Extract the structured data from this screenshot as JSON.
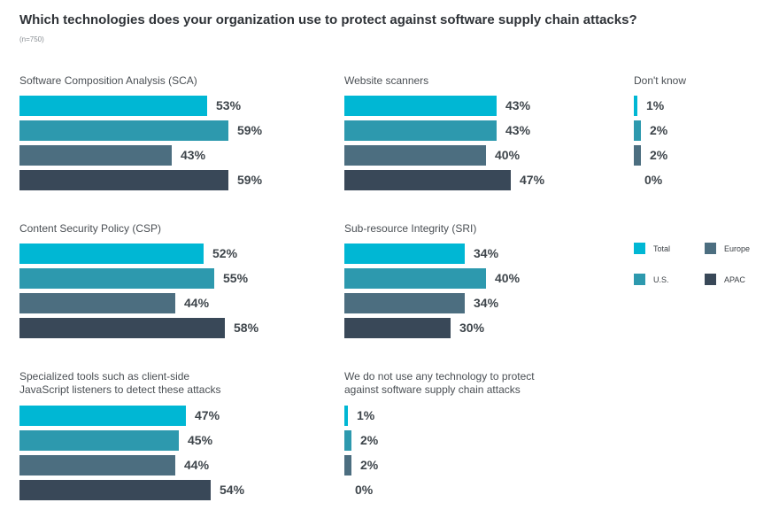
{
  "header": {
    "title": "Which technologies does your organization use to protect against software supply chain attacks?",
    "subtitle": "(n=750)"
  },
  "colors": {
    "Total": "#00b7d4",
    "U.S.": "#2d99ae",
    "Europe": "#4c6e80",
    "APAC": "#394858"
  },
  "chart_data": {
    "type": "bar",
    "orientation": "horizontal",
    "title": "Which technologies does your organization use to protect against software supply chain attacks?",
    "subtitle": "(n=750)",
    "unit": "%",
    "series_names": [
      "Total",
      "U.S.",
      "Europe",
      "APAC"
    ],
    "legend": {
      "position": "right",
      "items": [
        "Total",
        "Europe",
        "U.S.",
        "APAC"
      ]
    },
    "panels": [
      {
        "label_lines": [
          "Software Composition Analysis (SCA)"
        ],
        "values": [
          53,
          59,
          43,
          59
        ],
        "labels": [
          "53%",
          "59%",
          "43%",
          "59%"
        ]
      },
      {
        "label_lines": [
          "Website scanners"
        ],
        "values": [
          43,
          43,
          40,
          47
        ],
        "labels": [
          "43%",
          "43%",
          "40%",
          "47%"
        ]
      },
      {
        "label_lines": [
          "Don't know"
        ],
        "values": [
          1,
          2,
          2,
          0
        ],
        "labels": [
          "1%",
          "2%",
          "2%",
          "0%"
        ]
      },
      {
        "label_lines": [
          "Content Security Policy (CSP)"
        ],
        "values": [
          52,
          55,
          44,
          58
        ],
        "labels": [
          "52%",
          "55%",
          "44%",
          "58%"
        ]
      },
      {
        "label_lines": [
          "Sub-resource Integrity (SRI)"
        ],
        "values": [
          34,
          40,
          34,
          30
        ],
        "labels": [
          "34%",
          "40%",
          "34%",
          "30%"
        ]
      },
      {
        "label_lines": [
          "Specialized tools such as client-side",
          "JavaScript listeners to detect these attacks"
        ],
        "values": [
          47,
          45,
          44,
          54
        ],
        "labels": [
          "47%",
          "45%",
          "44%",
          "54%"
        ]
      },
      {
        "label_lines": [
          "We do not use any technology to protect",
          "against software supply chain attacks"
        ],
        "values": [
          1,
          2,
          2,
          0
        ],
        "labels": [
          "1%",
          "2%",
          "2%",
          "0%"
        ]
      }
    ]
  }
}
